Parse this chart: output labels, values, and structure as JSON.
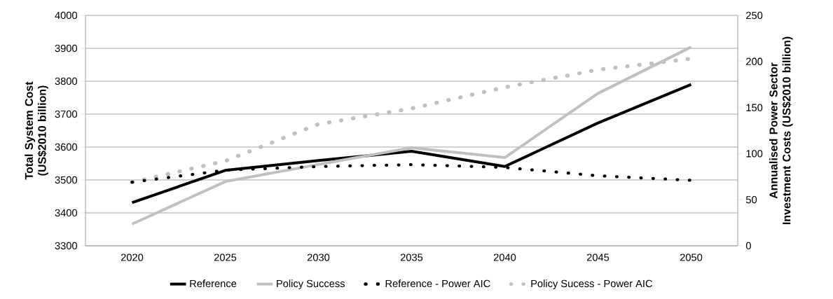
{
  "chart_data": {
    "type": "line",
    "ylabel": "Total System Cost (US$2010 billion)",
    "y2label": "Annualised Power Sector Investment Costs (US$2010 billion)",
    "categories": [
      "2020",
      "2025",
      "2030",
      "2035",
      "2040",
      "2045",
      "2050"
    ],
    "series": [
      {
        "name": "Reference",
        "color": "#000000",
        "values": [
          3431,
          3529,
          3559,
          3587,
          3541,
          3673,
          3790
        ],
        "line_style": "solid"
      },
      {
        "name": "Policy Success",
        "color": "#c0c0c0",
        "values": [
          3366,
          3495,
          3547,
          3598,
          3568,
          3763,
          3904
        ],
        "line_style": "solid"
      },
      {
        "name": "Reference - Power AIC",
        "color": "#000000",
        "values": [
          69,
          82,
          86,
          88,
          85,
          76,
          71
        ],
        "line_style": "dotted",
        "axis": "y2"
      },
      {
        "name": "Policy Sucess - Power AIC",
        "color": "#c0c0c0",
        "values": [
          69,
          92,
          132,
          149,
          172,
          191,
          203
        ],
        "line_style": "dotted",
        "axis": "y2"
      }
    ],
    "ylim": [
      3300,
      4000
    ],
    "yticks": [
      3300,
      3400,
      3500,
      3600,
      3700,
      3800,
      3900,
      4000
    ],
    "y2lim": [
      0,
      250
    ],
    "y2ticks": [
      0,
      50,
      100,
      150,
      200,
      250
    ],
    "grid": "y",
    "legend": "bottom",
    "marker": "none"
  }
}
